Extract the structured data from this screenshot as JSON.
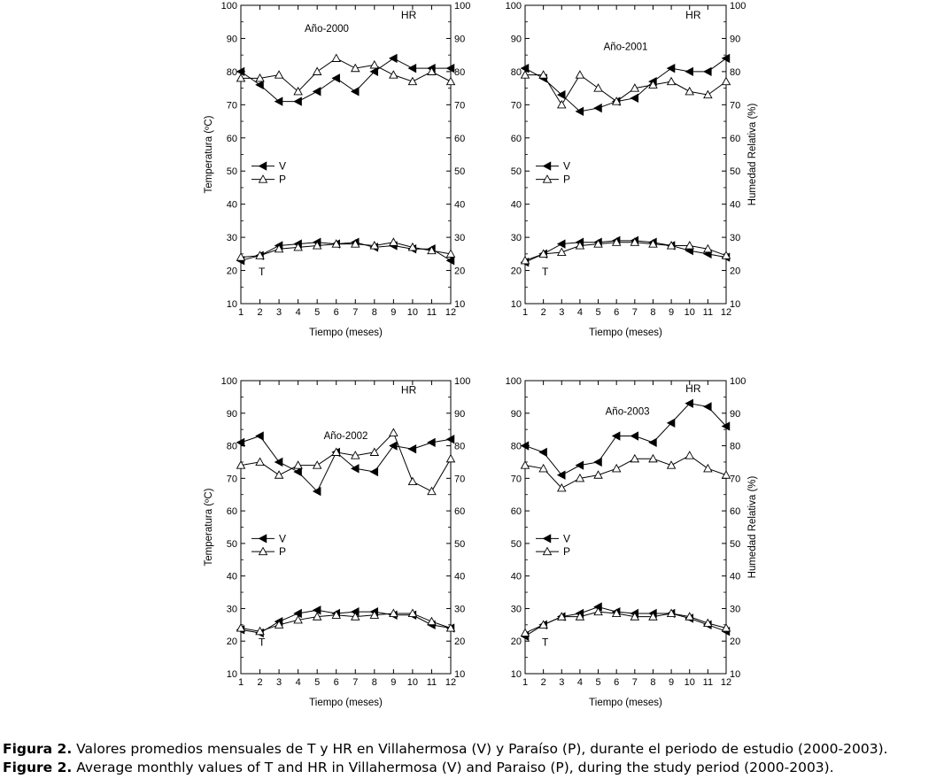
{
  "chart_data": [
    {
      "type": "line",
      "panel_label": "Año-2000",
      "hr_label": "HR",
      "t_label": "T",
      "xlabel": "Tiempo (meses)",
      "ylabel_left": "Temperatura (ºC)",
      "ylabel_right": "",
      "x": [
        1,
        2,
        3,
        4,
        5,
        6,
        7,
        8,
        9,
        10,
        11,
        12
      ],
      "ylim": [
        10,
        100
      ],
      "yticks": [
        10,
        20,
        30,
        40,
        50,
        60,
        70,
        80,
        90,
        100
      ],
      "legend": [
        "V",
        "P"
      ],
      "legend_placement": "middle-left",
      "grid": false,
      "series": [
        {
          "name": "V",
          "variable": "HR",
          "marker": "filled-left-triangle",
          "values": [
            80,
            76,
            71,
            71,
            74,
            78,
            74,
            80,
            84,
            81,
            81,
            81
          ]
        },
        {
          "name": "P",
          "variable": "HR",
          "marker": "open-up-triangle",
          "values": [
            78,
            78,
            79,
            74,
            80,
            84,
            81,
            82,
            79,
            77,
            80,
            77
          ]
        },
        {
          "name": "V",
          "variable": "T",
          "marker": "filled-left-triangle",
          "values": [
            23,
            24.5,
            27.5,
            28,
            28.5,
            28,
            28.5,
            27,
            27.5,
            26.5,
            26.5,
            23
          ]
        },
        {
          "name": "P",
          "variable": "T",
          "marker": "open-up-triangle",
          "values": [
            24,
            24.5,
            26.5,
            27,
            27.5,
            28,
            28,
            27.5,
            28.5,
            27,
            26,
            25
          ]
        }
      ]
    },
    {
      "type": "line",
      "panel_label": "Año-2001",
      "hr_label": "HR",
      "t_label": "T",
      "xlabel": "Tiempo (meses)",
      "ylabel_left": "",
      "ylabel_right": "Humedad Relativa (%)",
      "x": [
        1,
        2,
        3,
        4,
        5,
        6,
        7,
        8,
        9,
        10,
        11,
        12
      ],
      "ylim": [
        10,
        100
      ],
      "yticks": [
        10,
        20,
        30,
        40,
        50,
        60,
        70,
        80,
        90,
        100
      ],
      "legend": [
        "V",
        "P"
      ],
      "legend_placement": "middle-left",
      "grid": false,
      "series": [
        {
          "name": "V",
          "variable": "HR",
          "marker": "filled-left-triangle",
          "values": [
            81,
            78,
            73,
            68,
            69,
            71,
            72,
            77,
            81,
            80,
            80,
            84
          ]
        },
        {
          "name": "P",
          "variable": "HR",
          "marker": "open-up-triangle",
          "values": [
            79,
            79,
            70,
            79,
            75,
            71,
            75,
            76,
            77,
            74,
            73,
            77
          ]
        },
        {
          "name": "V",
          "variable": "T",
          "marker": "filled-left-triangle",
          "values": [
            22.5,
            25,
            28,
            28.5,
            28.5,
            29,
            29,
            28.5,
            27.5,
            26,
            25,
            24
          ]
        },
        {
          "name": "P",
          "variable": "T",
          "marker": "open-up-triangle",
          "values": [
            23,
            25,
            25.5,
            27.5,
            28,
            28.5,
            28.5,
            28,
            27.5,
            27.5,
            26.5,
            24.5
          ]
        }
      ]
    },
    {
      "type": "line",
      "panel_label": "Año-2002",
      "hr_label": "HR",
      "t_label": "T",
      "xlabel": "Tiempo (meses)",
      "ylabel_left": "Temperatura (ºC)",
      "ylabel_right": "",
      "x": [
        1,
        2,
        3,
        4,
        5,
        6,
        7,
        8,
        9,
        10,
        11,
        12
      ],
      "ylim": [
        10,
        100
      ],
      "yticks": [
        10,
        20,
        30,
        40,
        50,
        60,
        70,
        80,
        90,
        100
      ],
      "legend": [
        "V",
        "P"
      ],
      "legend_placement": "middle-left",
      "grid": false,
      "series": [
        {
          "name": "V",
          "variable": "HR",
          "marker": "filled-left-triangle",
          "values": [
            81,
            83,
            75,
            72,
            66,
            78,
            73,
            72,
            80,
            79,
            81,
            82
          ]
        },
        {
          "name": "P",
          "variable": "HR",
          "marker": "open-up-triangle",
          "values": [
            74,
            75,
            71,
            74,
            74,
            78,
            77,
            78,
            84,
            69,
            66,
            76
          ]
        },
        {
          "name": "V",
          "variable": "T",
          "marker": "filled-left-triangle",
          "values": [
            23.5,
            22.5,
            26,
            28.5,
            29.5,
            28.5,
            29,
            29,
            28,
            28,
            25,
            24
          ]
        },
        {
          "name": "P",
          "variable": "T",
          "marker": "open-up-triangle",
          "values": [
            24,
            23,
            25,
            26.5,
            27.5,
            28,
            27.5,
            28,
            28.5,
            28.5,
            26,
            24
          ]
        }
      ]
    },
    {
      "type": "line",
      "panel_label": "Año-2003",
      "hr_label": "HR",
      "t_label": "T",
      "xlabel": "Tiempo (meses)",
      "ylabel_left": "",
      "ylabel_right": "Humedad Relativa (%)",
      "x": [
        1,
        2,
        3,
        4,
        5,
        6,
        7,
        8,
        9,
        10,
        11,
        12
      ],
      "ylim": [
        10,
        100
      ],
      "yticks": [
        10,
        20,
        30,
        40,
        50,
        60,
        70,
        80,
        90,
        100
      ],
      "legend": [
        "V",
        "P"
      ],
      "legend_placement": "middle-left",
      "grid": false,
      "series": [
        {
          "name": "V",
          "variable": "HR",
          "marker": "filled-left-triangle",
          "values": [
            80,
            78,
            71,
            74,
            75,
            83,
            83,
            81,
            87,
            93,
            92,
            86
          ]
        },
        {
          "name": "P",
          "variable": "HR",
          "marker": "open-up-triangle",
          "values": [
            74,
            73,
            67,
            70,
            71,
            73,
            76,
            76,
            74,
            77,
            73,
            71
          ]
        },
        {
          "name": "V",
          "variable": "T",
          "marker": "filled-left-triangle",
          "values": [
            21.5,
            25,
            27.5,
            28.5,
            30.5,
            29,
            28.5,
            28.5,
            28.5,
            27,
            25,
            23
          ]
        },
        {
          "name": "P",
          "variable": "T",
          "marker": "open-up-triangle",
          "values": [
            22.5,
            25,
            27.5,
            27.5,
            29,
            28.5,
            27.5,
            27.5,
            28.5,
            27.5,
            25.5,
            24
          ]
        }
      ]
    }
  ],
  "caption": {
    "es_label": "Figura 2.",
    "es_text": " Valores promedios mensuales de T y HR en Villahermosa (V) y Paraíso (P), durante el periodo de estudio (2000-2003).",
    "en_label": "Figure 2.",
    "en_text": " Average monthly values of T and HR in Villahermosa (V) and Paraiso (P), during the study period (2000-2003)."
  }
}
